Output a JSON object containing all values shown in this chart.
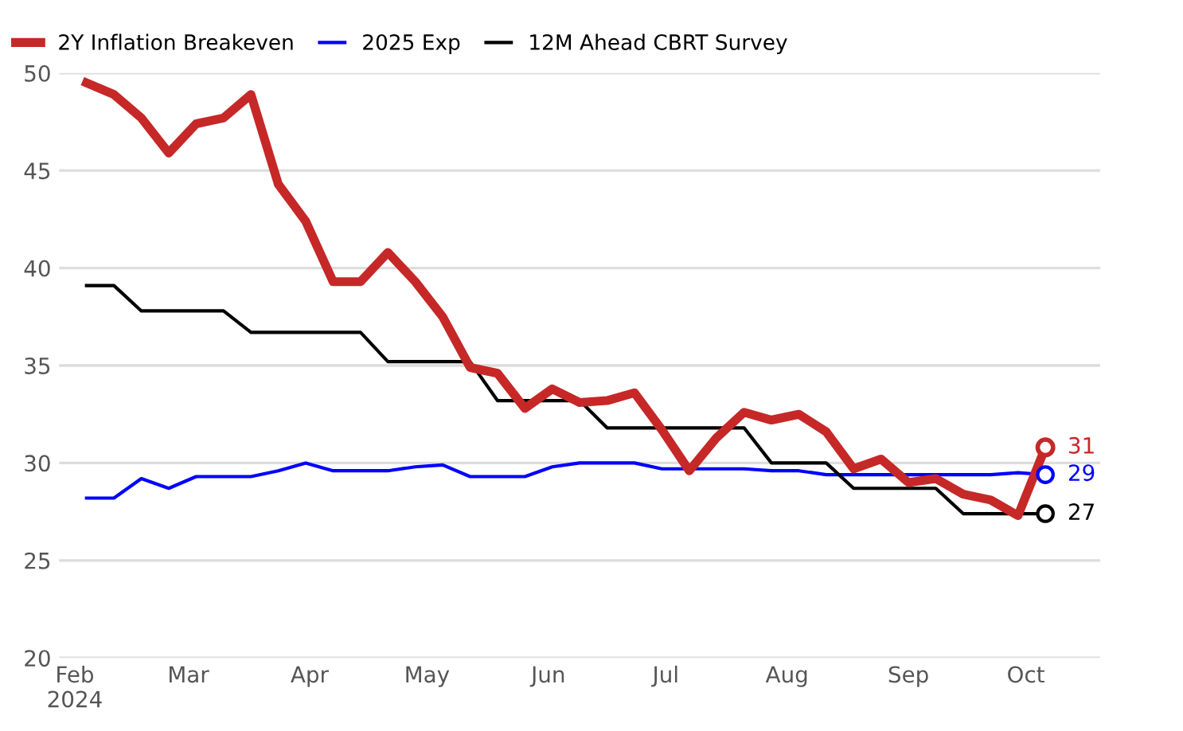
{
  "chart_data": {
    "type": "line",
    "x": [
      "2024-02-04",
      "2024-02-11",
      "2024-02-18",
      "2024-02-25",
      "2024-03-03",
      "2024-03-10",
      "2024-03-17",
      "2024-03-24",
      "2024-03-31",
      "2024-04-07",
      "2024-04-14",
      "2024-04-21",
      "2024-04-28",
      "2024-05-05",
      "2024-05-12",
      "2024-05-19",
      "2024-05-26",
      "2024-06-02",
      "2024-06-09",
      "2024-06-16",
      "2024-06-23",
      "2024-06-30",
      "2024-07-07",
      "2024-07-14",
      "2024-07-21",
      "2024-07-28",
      "2024-08-04",
      "2024-08-11",
      "2024-08-18",
      "2024-08-25",
      "2024-09-01",
      "2024-09-08",
      "2024-09-15",
      "2024-09-22",
      "2024-09-29",
      "2024-10-06"
    ],
    "series": [
      {
        "name": "2Y Inflation Breakeven",
        "color": "#c62828",
        "values": [
          49.5,
          48.9,
          47.7,
          45.9,
          47.4,
          47.7,
          48.9,
          44.3,
          42.4,
          39.3,
          39.3,
          40.8,
          39.3,
          37.5,
          34.9,
          34.6,
          32.8,
          33.8,
          33.1,
          33.2,
          33.6,
          31.7,
          29.6,
          31.3,
          32.6,
          32.2,
          32.5,
          31.6,
          29.7,
          30.2,
          29.0,
          29.2,
          28.4,
          28.1,
          27.3,
          30.8
        ],
        "value_labels": [
          null,
          null,
          null,
          null,
          null,
          null,
          null,
          null,
          null,
          null,
          null,
          null,
          null,
          null,
          null,
          null,
          null,
          null,
          null,
          null,
          null,
          null,
          null,
          null,
          null,
          null,
          null,
          null,
          null,
          null,
          null,
          null,
          null,
          null,
          null,
          "31"
        ]
      },
      {
        "name": "2025 Exp",
        "color": "#0000ff",
        "values": [
          28.2,
          28.2,
          29.2,
          28.7,
          29.3,
          29.3,
          29.3,
          29.6,
          30.0,
          29.6,
          29.6,
          29.6,
          29.8,
          29.9,
          29.3,
          29.3,
          29.3,
          29.8,
          30.0,
          30.0,
          30.0,
          29.7,
          29.7,
          29.7,
          29.7,
          29.6,
          29.6,
          29.4,
          29.4,
          29.4,
          29.4,
          29.4,
          29.4,
          29.4,
          29.5,
          29.4
        ],
        "value_labels": [
          null,
          null,
          null,
          null,
          null,
          null,
          null,
          null,
          null,
          null,
          null,
          null,
          null,
          null,
          null,
          null,
          null,
          null,
          null,
          null,
          null,
          null,
          null,
          null,
          null,
          null,
          null,
          null,
          null,
          null,
          null,
          null,
          null,
          null,
          null,
          "29"
        ]
      },
      {
        "name": "12M Ahead CBRT Survey",
        "color": "#000000",
        "values": [
          39.1,
          39.1,
          37.8,
          37.8,
          37.8,
          37.8,
          36.7,
          36.7,
          36.7,
          36.7,
          36.7,
          35.2,
          35.2,
          35.2,
          35.2,
          33.2,
          33.2,
          33.2,
          33.2,
          31.8,
          31.8,
          31.8,
          31.8,
          31.8,
          31.8,
          30.0,
          30.0,
          30.0,
          28.7,
          28.7,
          28.7,
          28.7,
          27.4,
          27.4,
          27.4,
          27.4
        ],
        "value_labels": [
          null,
          null,
          null,
          null,
          null,
          null,
          null,
          null,
          null,
          null,
          null,
          null,
          null,
          null,
          null,
          null,
          null,
          null,
          null,
          null,
          null,
          null,
          null,
          null,
          null,
          null,
          null,
          null,
          null,
          null,
          null,
          null,
          null,
          null,
          null,
          "27"
        ]
      }
    ],
    "ylim": [
      20,
      50
    ],
    "yticks": [
      20,
      25,
      30,
      35,
      40,
      45,
      50
    ],
    "xlim": [
      "2024-01-28",
      "2024-10-20"
    ],
    "xticks": [
      {
        "value": "2024-02-01",
        "label": "Feb\n2024"
      },
      {
        "value": "2024-03-01",
        "label": "Mar"
      },
      {
        "value": "2024-04-01",
        "label": "Apr"
      },
      {
        "value": "2024-05-01",
        "label": "May"
      },
      {
        "value": "2024-06-01",
        "label": "Jun"
      },
      {
        "value": "2024-07-01",
        "label": "Jul"
      },
      {
        "value": "2024-08-01",
        "label": "Aug"
      },
      {
        "value": "2024-09-01",
        "label": "Sep"
      },
      {
        "value": "2024-10-01",
        "label": "Oct"
      }
    ],
    "grid": "y",
    "legend": "top left"
  }
}
